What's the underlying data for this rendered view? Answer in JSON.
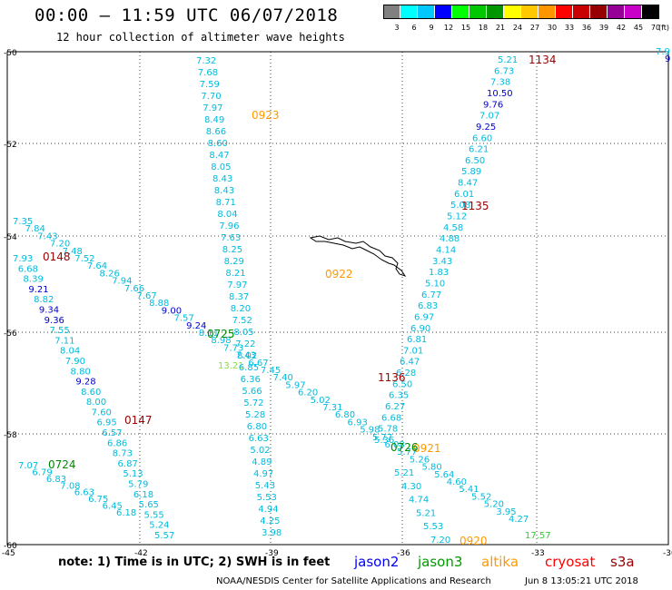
{
  "header": {
    "title": "00:00 — 11:59 UTC 06/07/2018",
    "subtitle": "12 hour collection of altimeter wave heights"
  },
  "scale": {
    "labels": [
      "3",
      "6",
      "9",
      "12",
      "15",
      "18",
      "21",
      "24",
      "27",
      "30",
      "33",
      "36",
      "39",
      "42",
      "45",
      "70"
    ],
    "unit": "(ft)",
    "colors": [
      "#808080",
      "#00ffff",
      "#00c8ff",
      "#0000ff",
      "#00ff00",
      "#00c800",
      "#009600",
      "#ffff00",
      "#ffc800",
      "#ff9600",
      "#ff0000",
      "#c80000",
      "#960000",
      "#960096",
      "#c800c8",
      "#000000"
    ]
  },
  "axes": {
    "lat_labels": [
      "-50",
      "-52",
      "-54",
      "-56",
      "-58",
      "-60"
    ],
    "lon_labels": [
      "-45",
      "-42",
      "-39",
      "-36",
      "-33",
      "-30"
    ]
  },
  "tracks": [
    {
      "time": "0923",
      "time_color": "#ff9900",
      "points": [
        "7.32",
        "7.68",
        "7.59",
        "7.70",
        "7.97",
        "8.49",
        "8.66",
        "8.60",
        "8.47",
        "8.05",
        "8.43",
        "8.43",
        "8.71",
        "8.04",
        "7.96",
        "7.63",
        "8.25",
        "8.29",
        "8.21",
        "7.97",
        "8.37",
        "8.20",
        "7.52",
        "8.05",
        "7.22",
        "8.02",
        "6.85",
        "6.36",
        "5.66",
        "5.72",
        "5.28",
        "6.80",
        "6.63",
        "5.02",
        "4.89",
        "4.97",
        "5.43",
        "5.53",
        "4.94",
        "4.25",
        "3.98"
      ]
    },
    {
      "time": "0922",
      "time_color": "#ff9900",
      "points": []
    },
    {
      "time": "0921",
      "time_color": "#ff9900",
      "points": []
    },
    {
      "time": "0920",
      "time_color": "#ff9900",
      "points": []
    },
    {
      "time": "1134",
      "time_color": "#990000",
      "points": [
        "5.21",
        "6.73",
        "7.38",
        "10.50",
        "9.76",
        "7.07",
        "9.25",
        "6.60",
        "6.21",
        "6.50",
        "5.89",
        "8.47",
        "6.01",
        "5.08",
        "5.12",
        "4.58",
        "4.88",
        "4.14",
        "3.43",
        "1.83",
        "5.10",
        "6.77",
        "6.83",
        "6.97",
        "6.90",
        "6.81",
        "7.01",
        "6.47",
        "6.28",
        "6.50",
        "6.35",
        "6.27",
        "6.68",
        "5.78",
        "5.36"
      ]
    },
    {
      "time": "1135",
      "time_color": "#990000",
      "points": []
    },
    {
      "time": "1136",
      "time_color": "#990000",
      "points": []
    },
    {
      "time": "0148",
      "time_color": "#990000",
      "points": [
        "7.35",
        "7.84",
        "7.43",
        "7.20",
        "7.48",
        "7.52",
        "7.64",
        "8.26",
        "7.94",
        "7.66",
        "7.67",
        "8.88",
        "9.00",
        "7.57",
        "9.24",
        "8.11",
        "8.98",
        "7.73",
        "7.43",
        "6.67",
        "7.45",
        "7.40",
        "5.97",
        "6.20",
        "5.02",
        "7.31",
        "6.80",
        "6.93",
        "5.98",
        "5.77",
        "6.08",
        "5.77",
        "5.26",
        "5.80",
        "5.64",
        "4.60",
        "5.41",
        "5.52",
        "5.20",
        "3.95",
        "4.27"
      ]
    },
    {
      "time": "0147",
      "time_color": "#990000",
      "points": [
        "7.93",
        "6.68",
        "8.39",
        "9.21",
        "8.82",
        "9.34",
        "9.36",
        "7.55",
        "7.11",
        "8.04",
        "7.90",
        "8.80",
        "9.28",
        "8.60",
        "8.00",
        "7.60",
        "6.95",
        "6.57",
        "6.86",
        "8.73",
        "6.87",
        "5.13",
        "5.79",
        "6.18",
        "5.65",
        "5.55",
        "5.24",
        "5.57"
      ]
    },
    {
      "time": "0725",
      "time_color": "#008800",
      "points": [
        "13.21"
      ]
    },
    {
      "time": "0726",
      "time_color": "#008800",
      "points": []
    },
    {
      "time": "0724",
      "time_color": "#008800",
      "points": [
        "7.07",
        "6.79",
        "6.83",
        "7.08",
        "6.63",
        "6.75",
        "6.45",
        "6.18",
        "5.21",
        "4.30",
        "4.74",
        "5.21",
        "5.53",
        "7.20",
        "17.57"
      ]
    }
  ],
  "extra_values": [
    "7.9",
    "9"
  ],
  "note": "note: 1) Time is in UTC; 2) SWH is in feet",
  "satellites": [
    {
      "name": "jason2",
      "color": "#0000ff"
    },
    {
      "name": "jason3",
      "color": "#009900"
    },
    {
      "name": "altika",
      "color": "#ff9900"
    },
    {
      "name": "cryosat",
      "color": "#ff0000"
    },
    {
      "name": "s3a",
      "color": "#990000"
    }
  ],
  "credit": "NOAA/NESDIS Center for Satellite Applications and Research",
  "stamp": "Jun  8 13:05:21 UTC 2018"
}
